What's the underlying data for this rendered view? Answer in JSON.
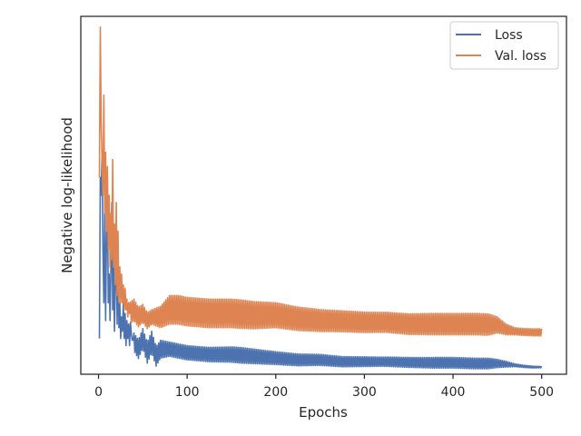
{
  "chart_data": {
    "type": "line",
    "xlabel": "Epochs",
    "ylabel": "Negative log-likelihood",
    "xlim": [
      -20,
      528
    ],
    "ylim": [
      0.0,
      1.0
    ],
    "xticks": [
      0,
      100,
      200,
      300,
      400,
      500
    ],
    "yticks": [],
    "grid": false,
    "legend_position": "top-right",
    "series": [
      {
        "name": "Loss",
        "color": "#4c72b0",
        "points": [
          [
            1,
            0.1
          ],
          [
            2,
            0.55
          ],
          [
            3,
            0.5
          ],
          [
            4,
            0.62
          ],
          [
            5,
            0.35
          ],
          [
            6,
            0.2
          ],
          [
            7,
            0.45
          ],
          [
            8,
            0.15
          ],
          [
            9,
            0.38
          ],
          [
            10,
            0.55
          ],
          [
            11,
            0.2
          ],
          [
            12,
            0.28
          ],
          [
            13,
            0.15
          ],
          [
            14,
            0.3
          ],
          [
            15,
            0.48
          ],
          [
            16,
            0.18
          ],
          [
            17,
            0.3
          ],
          [
            18,
            0.12
          ],
          [
            19,
            0.25
          ],
          [
            20,
            0.4
          ],
          [
            21,
            0.14
          ],
          [
            22,
            0.33
          ],
          [
            23,
            0.13
          ],
          [
            24,
            0.2
          ],
          [
            25,
            0.1
          ],
          [
            26,
            0.16
          ],
          [
            27,
            0.12
          ],
          [
            28,
            0.2
          ],
          [
            29,
            0.1
          ],
          [
            30,
            0.17
          ],
          [
            31,
            0.08
          ],
          [
            32,
            0.15
          ],
          [
            33,
            0.1
          ],
          [
            34,
            0.14
          ],
          [
            35,
            0.08
          ],
          [
            36,
            0.12
          ],
          [
            37,
            0.14
          ],
          [
            38,
            0.07
          ],
          [
            39,
            0.12
          ],
          [
            40,
            0.09
          ],
          [
            45,
            0.07
          ],
          [
            50,
            0.1
          ],
          [
            55,
            0.06
          ],
          [
            60,
            0.09
          ],
          [
            65,
            0.05
          ],
          [
            70,
            0.07
          ],
          [
            80,
            0.07
          ],
          [
            90,
            0.065
          ],
          [
            100,
            0.06
          ],
          [
            125,
            0.055
          ],
          [
            150,
            0.055
          ],
          [
            175,
            0.05
          ],
          [
            200,
            0.045
          ],
          [
            225,
            0.04
          ],
          [
            250,
            0.04
          ],
          [
            275,
            0.035
          ],
          [
            300,
            0.035
          ],
          [
            325,
            0.035
          ],
          [
            350,
            0.033
          ],
          [
            375,
            0.032
          ],
          [
            400,
            0.032
          ],
          [
            425,
            0.03
          ],
          [
            450,
            0.03
          ],
          [
            460,
            0.028
          ],
          [
            470,
            0.025
          ],
          [
            480,
            0.022
          ],
          [
            490,
            0.02
          ],
          [
            500,
            0.02
          ]
        ],
        "oscillation": [
          [
            40,
            0.025
          ],
          [
            60,
            0.03
          ],
          [
            80,
            0.02
          ],
          [
            120,
            0.02
          ],
          [
            160,
            0.022
          ],
          [
            200,
            0.018
          ],
          [
            260,
            0.015
          ],
          [
            320,
            0.013
          ],
          [
            380,
            0.015
          ],
          [
            440,
            0.015
          ],
          [
            460,
            0.008
          ],
          [
            470,
            0.004
          ],
          [
            500,
            0.002
          ]
        ]
      },
      {
        "name": "Val. loss",
        "color": "#dd8452",
        "points": [
          [
            1,
            0.55
          ],
          [
            2,
            0.97
          ],
          [
            3,
            0.7
          ],
          [
            4,
            0.6
          ],
          [
            5,
            0.5
          ],
          [
            6,
            0.78
          ],
          [
            7,
            0.45
          ],
          [
            8,
            0.62
          ],
          [
            9,
            0.4
          ],
          [
            10,
            0.58
          ],
          [
            11,
            0.35
          ],
          [
            12,
            0.5
          ],
          [
            13,
            0.3
          ],
          [
            14,
            0.45
          ],
          [
            15,
            0.32
          ],
          [
            16,
            0.6
          ],
          [
            17,
            0.3
          ],
          [
            18,
            0.42
          ],
          [
            19,
            0.25
          ],
          [
            20,
            0.48
          ],
          [
            21,
            0.22
          ],
          [
            22,
            0.4
          ],
          [
            23,
            0.2
          ],
          [
            24,
            0.3
          ],
          [
            25,
            0.2
          ],
          [
            26,
            0.28
          ],
          [
            27,
            0.2
          ],
          [
            28,
            0.25
          ],
          [
            29,
            0.18
          ],
          [
            30,
            0.24
          ],
          [
            31,
            0.18
          ],
          [
            32,
            0.21
          ],
          [
            33,
            0.16
          ],
          [
            34,
            0.2
          ],
          [
            35,
            0.17
          ],
          [
            40,
            0.18
          ],
          [
            45,
            0.16
          ],
          [
            50,
            0.17
          ],
          [
            55,
            0.15
          ],
          [
            60,
            0.16
          ],
          [
            70,
            0.16
          ],
          [
            80,
            0.18
          ],
          [
            90,
            0.18
          ],
          [
            100,
            0.175
          ],
          [
            125,
            0.17
          ],
          [
            150,
            0.17
          ],
          [
            175,
            0.165
          ],
          [
            200,
            0.165
          ],
          [
            225,
            0.155
          ],
          [
            250,
            0.15
          ],
          [
            275,
            0.148
          ],
          [
            300,
            0.145
          ],
          [
            325,
            0.145
          ],
          [
            350,
            0.14
          ],
          [
            375,
            0.14
          ],
          [
            400,
            0.14
          ],
          [
            425,
            0.14
          ],
          [
            450,
            0.138
          ],
          [
            460,
            0.125
          ],
          [
            470,
            0.12
          ],
          [
            480,
            0.118
          ],
          [
            490,
            0.117
          ],
          [
            500,
            0.117
          ]
        ],
        "oscillation": [
          [
            40,
            0.03
          ],
          [
            60,
            0.02
          ],
          [
            80,
            0.04
          ],
          [
            120,
            0.04
          ],
          [
            160,
            0.04
          ],
          [
            200,
            0.035
          ],
          [
            260,
            0.03
          ],
          [
            320,
            0.028
          ],
          [
            380,
            0.03
          ],
          [
            440,
            0.03
          ],
          [
            460,
            0.015
          ],
          [
            470,
            0.01
          ],
          [
            500,
            0.01
          ]
        ]
      }
    ]
  }
}
